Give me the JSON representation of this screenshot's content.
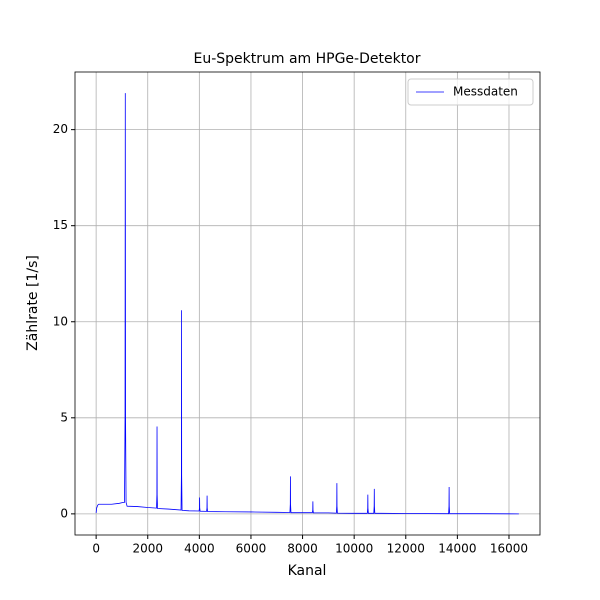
{
  "chart_data": {
    "type": "line",
    "title": "Eu-Spektrum am HPGe-Detektor",
    "x_label": "Kanal",
    "y_label": "Zählrate [1/s]",
    "x": [
      0,
      20,
      60,
      100,
      300,
      600,
      900,
      1050,
      1100,
      1120,
      1130,
      1140,
      1160,
      1200,
      1600,
      2000,
      2340,
      2355,
      2360,
      2365,
      2380,
      2800,
      3290,
      3305,
      3310,
      3315,
      3330,
      3600,
      3990,
      4005,
      4010,
      4015,
      4030,
      4280,
      4295,
      4300,
      4305,
      4320,
      5000,
      6000,
      7000,
      7510,
      7525,
      7530,
      7535,
      7550,
      8380,
      8395,
      8400,
      8405,
      8420,
      9000,
      9310,
      9325,
      9330,
      9335,
      9350,
      10000,
      10510,
      10525,
      10530,
      10535,
      10550,
      10760,
      10775,
      10780,
      10785,
      10800,
      12000,
      13660,
      13675,
      13680,
      13685,
      13700,
      15000,
      16383
    ],
    "series": [
      {
        "name": "Messdaten",
        "color": "#0000ff",
        "values": [
          0.05,
          0.3,
          0.45,
          0.5,
          0.5,
          0.5,
          0.55,
          0.6,
          0.6,
          5,
          21.9,
          5,
          0.6,
          0.4,
          0.38,
          0.33,
          0.3,
          1,
          4.55,
          1,
          0.28,
          0.25,
          0.2,
          2,
          10.6,
          2,
          0.18,
          0.16,
          0.15,
          0.3,
          0.85,
          0.3,
          0.14,
          0.13,
          0.3,
          0.95,
          0.3,
          0.12,
          0.11,
          0.1,
          0.08,
          0.07,
          0.5,
          1.95,
          0.5,
          0.06,
          0.06,
          0.2,
          0.65,
          0.2,
          0.05,
          0.05,
          0.04,
          0.4,
          1.6,
          0.4,
          0.04,
          0.03,
          0.03,
          0.3,
          1.0,
          0.3,
          0.03,
          0.03,
          0.4,
          1.3,
          0.4,
          0.03,
          0.02,
          0.01,
          0.4,
          1.4,
          0.4,
          0.01,
          0.01,
          0
        ]
      }
    ],
    "xlim": [
      -819,
      17202
    ],
    "ylim": [
      -1.1,
      23.0
    ],
    "xticks": [
      0,
      2000,
      4000,
      6000,
      8000,
      10000,
      12000,
      14000,
      16000
    ],
    "yticks": [
      0,
      5,
      10,
      15,
      20
    ],
    "grid": true,
    "legend": "upper right"
  }
}
